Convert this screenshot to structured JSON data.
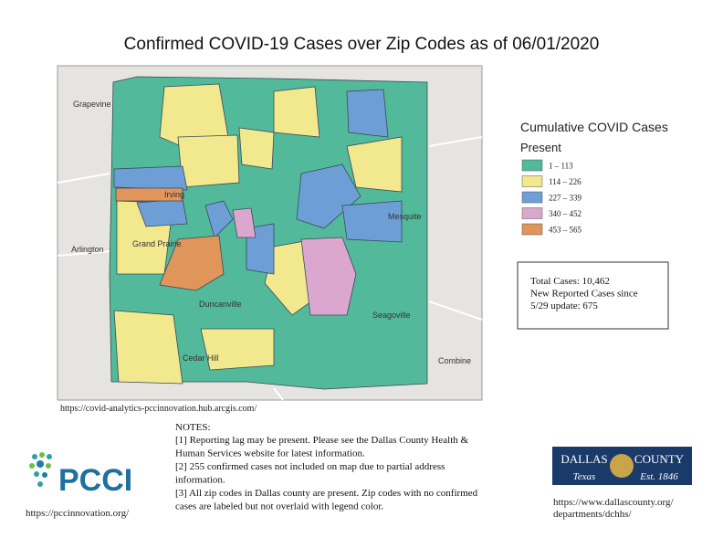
{
  "header": {
    "title": "Confirmed COVID-19 Cases over Zip Codes as of 06/01/2020"
  },
  "map": {
    "source": "https://covid-analytics-pccinnovation.hub.arcgis.com/",
    "places": [
      "Irving",
      "Arlington",
      "Grand Prairie",
      "Mesquite",
      "Seagoville",
      "Combine",
      "Cedar Hill",
      "Duncanville",
      "Grapevine"
    ]
  },
  "legend": {
    "title": "Cumulative COVID Cases",
    "subtitle": "Present",
    "items": [
      {
        "label": "1 – 113",
        "color": "#52b99a"
      },
      {
        "label": "114 – 226",
        "color": "#f2e88e"
      },
      {
        "label": "227 – 339",
        "color": "#6d9fd6"
      },
      {
        "label": "340 – 452",
        "color": "#dba7cf"
      },
      {
        "label": "453 – 565",
        "color": "#e0955a"
      }
    ]
  },
  "summary": {
    "lines": [
      "Total Cases: 10,462",
      "New Reported Cases since",
      "5/29 update: 675"
    ]
  },
  "notes": {
    "heading": "NOTES:",
    "lines": [
      "[1] Reporting lag may be present. Please see the Dallas County Health &",
      "Human Services website for latest information.",
      "[2] 255 confirmed cases not included on map due to partial address",
      "information.",
      "[3] All zip codes in Dallas county are present. Zip codes with no confirmed",
      "cases are labeled but not overlaid with legend color."
    ]
  },
  "footer": {
    "pcci": {
      "logo": "PCCI",
      "url": "https://pccinnovation.org/"
    },
    "county": {
      "name1": "DALLAS",
      "name2": "COUNTY",
      "state": "Texas",
      "est": "Est. 1846",
      "url_lines": [
        "https://www.dallascounty.org/",
        "departments/dchhs/"
      ]
    }
  }
}
